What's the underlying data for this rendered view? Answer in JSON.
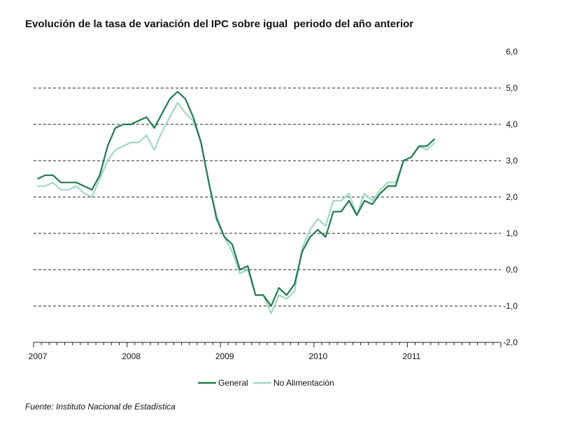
{
  "title": "Evolución de la tasa de variación del IPC sobre igual  periodo del año anterior",
  "source": "Fuente: Instituto Nacional de Estadística",
  "chart_data": {
    "type": "line",
    "title": "Evolución de la tasa de variación del IPC sobre igual  periodo del año anterior",
    "xlabel": "",
    "ylabel": "",
    "x_start": "2007-01",
    "x_end": "2011-12",
    "x_tick_labels": [
      "2007",
      "2008",
      "2009",
      "2010",
      "2011"
    ],
    "y_tick_labels": [
      "6,0",
      "5,0",
      "4,0",
      "3,0",
      "2,0",
      "1,0",
      "0,0",
      "-1,0",
      "-2,0"
    ],
    "y_ticks": [
      6,
      5,
      4,
      3,
      2,
      1,
      0,
      -1,
      -2
    ],
    "ylim": [
      -2,
      6
    ],
    "y_axis_position": "right",
    "grid": "dashed horizontal",
    "legend_position": "bottom",
    "series": [
      {
        "name": "General",
        "color": "#1e7b4c",
        "values": [
          2.5,
          2.6,
          2.6,
          2.4,
          2.4,
          2.4,
          2.3,
          2.2,
          2.6,
          3.4,
          3.9,
          4.0,
          4.0,
          4.1,
          4.2,
          3.9,
          4.3,
          4.7,
          4.9,
          4.7,
          4.2,
          3.5,
          2.4,
          1.4,
          0.9,
          0.7,
          0.0,
          0.1,
          -0.7,
          -0.7,
          -1.0,
          -0.5,
          -0.7,
          -0.4,
          0.5,
          0.9,
          1.1,
          0.9,
          1.6,
          1.6,
          1.9,
          1.5,
          1.9,
          1.8,
          2.1,
          2.3,
          2.3,
          3.0,
          3.1,
          3.4,
          3.4,
          3.6
        ]
      },
      {
        "name": "No Alimentación",
        "color": "#9fd8c0",
        "values": [
          2.3,
          2.3,
          2.4,
          2.2,
          2.2,
          2.3,
          2.1,
          2.0,
          2.5,
          3.0,
          3.3,
          3.4,
          3.5,
          3.5,
          3.7,
          3.3,
          3.8,
          4.2,
          4.6,
          4.3,
          4.1,
          3.5,
          2.4,
          1.5,
          0.9,
          0.5,
          -0.1,
          0.0,
          -0.7,
          -0.7,
          -1.2,
          -0.7,
          -0.8,
          -0.6,
          0.6,
          1.1,
          1.4,
          1.2,
          1.9,
          1.9,
          2.1,
          1.5,
          2.1,
          1.9,
          2.2,
          2.4,
          2.4,
          3.0,
          3.1,
          3.4,
          3.3,
          3.5
        ]
      }
    ]
  }
}
